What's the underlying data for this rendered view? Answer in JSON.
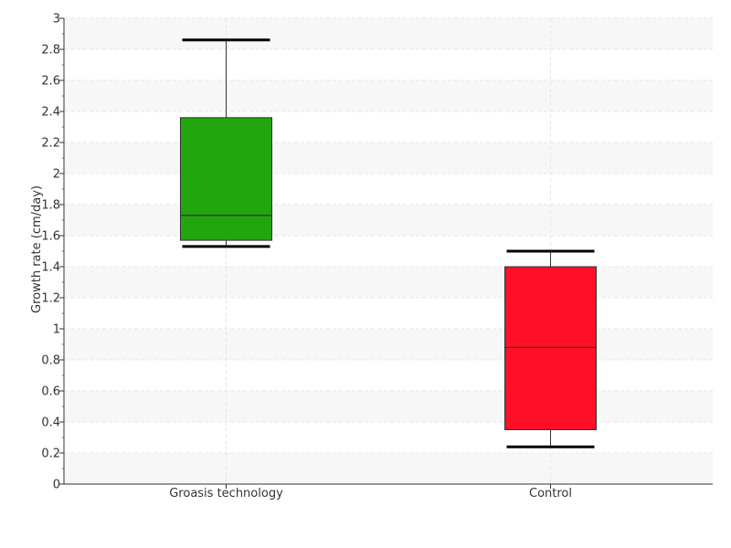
{
  "chart_data": {
    "type": "boxplot",
    "title": "",
    "xlabel": "",
    "ylabel": "Growth rate (cm/day)",
    "ylim": [
      0,
      3
    ],
    "yticks": [
      0,
      0.2,
      0.4,
      0.6,
      0.8,
      1,
      1.2,
      1.4,
      1.6,
      1.8,
      2,
      2.2,
      2.4,
      2.6,
      2.8,
      3
    ],
    "ytick_labels": [
      "0",
      "0.2",
      "0.4",
      "0.6",
      "0.8",
      "1",
      "1.2",
      "1.4",
      "1.6",
      "1.8",
      "2",
      "2.2",
      "2.4",
      "2.6",
      "2.8",
      "3"
    ],
    "grid": true,
    "legend": "none",
    "categories": [
      "Groasis technology",
      "Control"
    ],
    "boxes": [
      {
        "category": "Groasis technology",
        "min": 1.53,
        "q1": 1.57,
        "median": 1.73,
        "q3": 2.36,
        "max": 2.86,
        "color": "#22a60e"
      },
      {
        "category": "Control",
        "min": 0.24,
        "q1": 0.35,
        "median": 0.88,
        "q3": 1.4,
        "max": 1.5,
        "color": "#ff0f28"
      }
    ]
  }
}
